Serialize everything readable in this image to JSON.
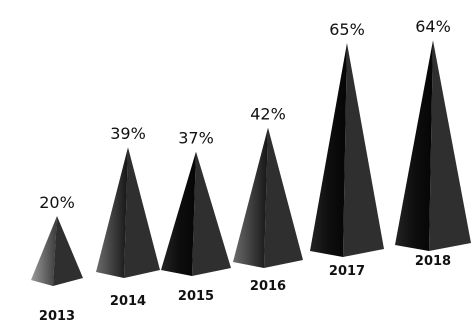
{
  "chart_data": {
    "type": "bar",
    "categories": [
      "2013",
      "2014",
      "2015",
      "2016",
      "2017",
      "2018"
    ],
    "values": [
      20,
      39,
      37,
      42,
      65,
      64
    ],
    "value_labels": [
      "20%",
      "39%",
      "37%",
      "42%",
      "65%",
      "64%"
    ],
    "unit": "%",
    "title": "",
    "xlabel": "",
    "ylabel": "",
    "ylim": [
      0,
      70
    ],
    "mark_shape": "pyramid",
    "grid": false,
    "legend": "none",
    "colors": {
      "mark_light": "#8a8a8a",
      "mark_dark": "#0d0d0d",
      "text": "#111111",
      "background": "#ffffff"
    }
  }
}
